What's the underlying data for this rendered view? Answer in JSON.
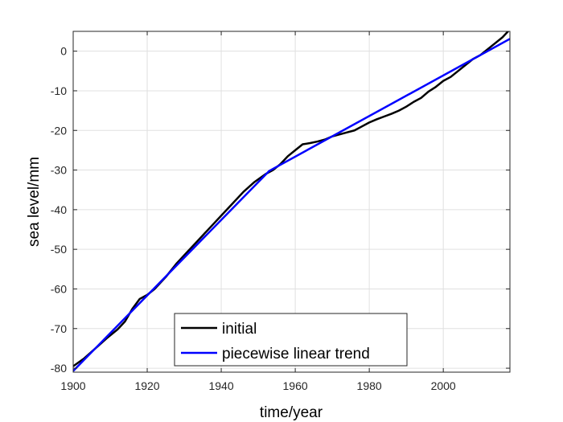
{
  "chart_data": {
    "type": "line",
    "title": "",
    "xlabel": "time/year",
    "ylabel": "sea level/mm",
    "xlim": [
      1900,
      2018
    ],
    "ylim": [
      -81,
      5
    ],
    "grid": true,
    "legend_position": "bottom-center",
    "x_ticks": [
      1900,
      1920,
      1940,
      1960,
      1980,
      2000
    ],
    "x_tick_labels": [
      "1900",
      "1920",
      "1940",
      "1960",
      "1980",
      "2000"
    ],
    "y_ticks": [
      0,
      -10,
      -20,
      -30,
      -40,
      -50,
      -60,
      -70,
      -80
    ],
    "y_tick_labels": [
      "0",
      "-10",
      "-20",
      "-30",
      "-40",
      "-50",
      "-60",
      "-70",
      "-80"
    ],
    "series": [
      {
        "name": "initial",
        "color": "#000000",
        "x": [
          1900,
          1903,
          1906,
          1909,
          1912,
          1914,
          1916,
          1918,
          1920,
          1922,
          1925,
          1928,
          1931,
          1934,
          1937,
          1940,
          1943,
          1946,
          1949,
          1952,
          1954,
          1956,
          1958,
          1960,
          1962,
          1964,
          1966,
          1968,
          1970,
          1972,
          1974,
          1976,
          1978,
          1980,
          1982,
          1984,
          1986,
          1988,
          1990,
          1992,
          1994,
          1996,
          1998,
          2000,
          2002,
          2004,
          2006,
          2008,
          2010,
          2012,
          2014,
          2016,
          2018
        ],
        "values": [
          -79.5,
          -77.5,
          -75,
          -72.5,
          -70.2,
          -68.2,
          -65,
          -62.5,
          -61.5,
          -60,
          -57,
          -53.5,
          -50.5,
          -47.5,
          -44.5,
          -41.5,
          -38.5,
          -35.5,
          -33,
          -31,
          -30,
          -28.5,
          -26.5,
          -25,
          -23.5,
          -23.2,
          -22.8,
          -22.3,
          -21.5,
          -21,
          -20.5,
          -20,
          -19,
          -18,
          -17.2,
          -16.5,
          -15.8,
          -15,
          -14,
          -12.8,
          -11.8,
          -10.2,
          -9,
          -7.5,
          -6.5,
          -5,
          -3.5,
          -2,
          -1,
          0.5,
          2,
          3.5,
          5.5
        ]
      },
      {
        "name": "piecewise linear trend",
        "color": "#0000ff",
        "x": [
          1900,
          1953,
          2018
        ],
        "values": [
          -80.7,
          -30.2,
          3.1
        ]
      }
    ]
  }
}
